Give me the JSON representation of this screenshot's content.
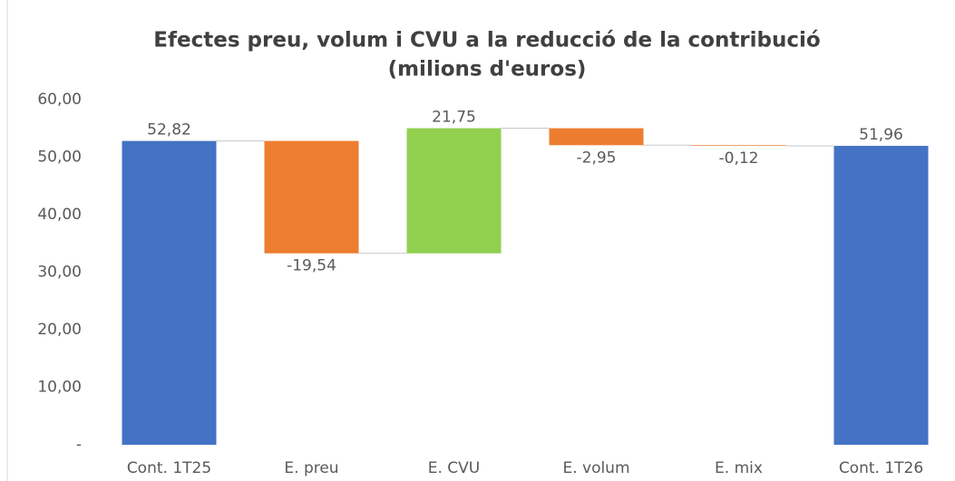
{
  "chart_data": {
    "type": "waterfall",
    "title": [
      "Efectes preu, volum i CVU a la reducció  de la contribució",
      "(milions d'euros)"
    ],
    "categories": [
      "Cont. 1T25",
      "E. preu",
      "E. CVU",
      "E. volum",
      "E. mix",
      "Cont. 1T26"
    ],
    "values": [
      52.82,
      -19.54,
      21.75,
      -2.95,
      -0.12,
      51.96
    ],
    "value_labels": [
      "52,82",
      "-19,54",
      "21,75",
      "-2,95",
      "-0,12",
      "51,96"
    ],
    "measure": [
      "total",
      "relative",
      "relative",
      "relative",
      "relative",
      "total"
    ],
    "colors": [
      "#4472c4",
      "#ed7d31",
      "#92d050",
      "#ed7d31",
      "#ed7d31",
      "#4472c4"
    ],
    "ylim": [
      0,
      60
    ],
    "yticks": [
      {
        "value": 0,
        "label": "-"
      },
      {
        "value": 10,
        "label": "10,00"
      },
      {
        "value": 20,
        "label": "20,00"
      },
      {
        "value": 30,
        "label": "30,00"
      },
      {
        "value": 40,
        "label": "40,00"
      },
      {
        "value": 50,
        "label": "50,00"
      },
      {
        "value": 60,
        "label": "60,00"
      }
    ],
    "grid": false
  }
}
